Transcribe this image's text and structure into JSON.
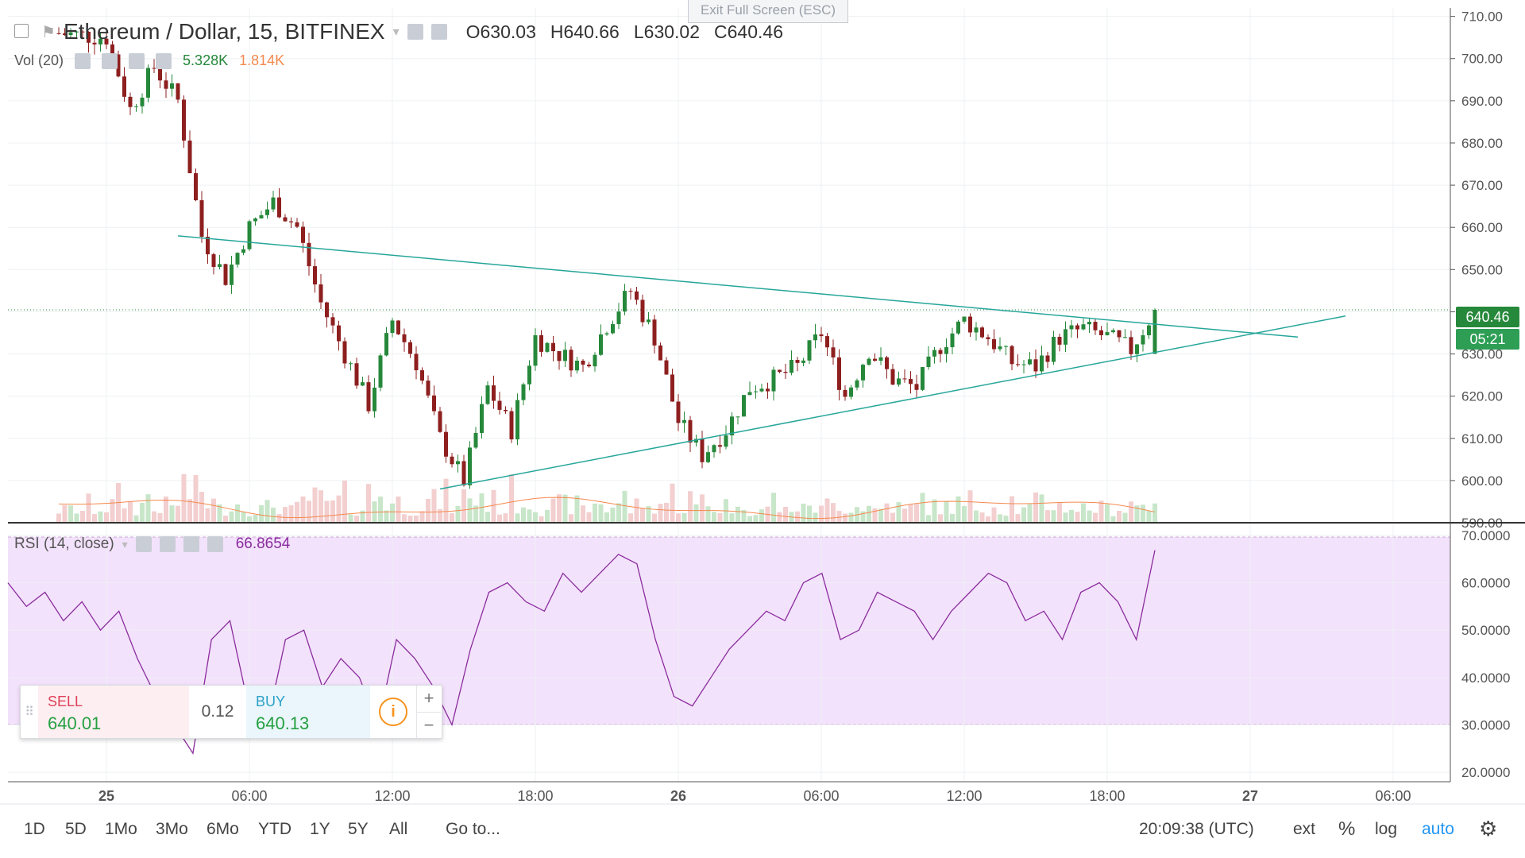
{
  "chart_header": {
    "symbol": "Ethereum / Dollar, 15, BITFINEX",
    "open_label": "O",
    "open": "630.03",
    "high_label": "H",
    "high": "640.66",
    "low_label": "L",
    "low": "630.02",
    "close_label": "C",
    "close": "640.46"
  },
  "fullscreen_hint": "Exit Full Screen (ESC)",
  "volume_indicator": {
    "label": "Vol (20)",
    "value1": "5.328K",
    "value2": "1.814K"
  },
  "rsi_indicator": {
    "label": "RSI (14, close)",
    "value": "66.8654"
  },
  "price_axis": [
    "710.00",
    "700.00",
    "690.00",
    "680.00",
    "670.00",
    "660.00",
    "650.00",
    "640.00",
    "630.00",
    "620.00",
    "610.00",
    "600.00",
    "590.00"
  ],
  "rsi_axis": [
    "70.0000",
    "60.0000",
    "50.0000",
    "40.0000",
    "30.0000",
    "20.0000"
  ],
  "time_axis": [
    "25",
    "06:00",
    "12:00",
    "18:00",
    "26",
    "06:00",
    "12:00",
    "18:00",
    "27",
    "06:00"
  ],
  "last_price_tag": "640.46",
  "countdown_tag": "05:21",
  "trade_panel": {
    "sell_label": "SELL",
    "sell_price": "640.01",
    "spread": "0.12",
    "buy_label": "BUY",
    "buy_price": "640.13"
  },
  "timeframes": [
    "1D",
    "5D",
    "1Mo",
    "3Mo",
    "6Mo",
    "YTD",
    "1Y",
    "5Y",
    "All"
  ],
  "goto_label": "Go to...",
  "clock": "20:09:38 (UTC)",
  "right_controls": {
    "ext": "ext",
    "percent": "%",
    "log": "log",
    "auto": "auto"
  },
  "colors": {
    "up": "#26883a",
    "down": "#8e1f1f",
    "trendline": "#26a69a",
    "rsi_line": "#8a2c9e",
    "rsi_band": "#f3e2fb",
    "accent_blue": "#2196f3"
  },
  "chart_data": [
    {
      "type": "candlestick",
      "title": "Ethereum / Dollar, 15, BITFINEX",
      "ylim": [
        590,
        712
      ],
      "x_ticks": [
        "25",
        "06:00",
        "12:00",
        "18:00",
        "26",
        "06:00",
        "12:00",
        "18:00",
        "27",
        "06:00"
      ],
      "approx_path": [
        {
          "t": "24 22:00",
          "c": 706
        },
        {
          "t": "25 00:00",
          "c": 705
        },
        {
          "t": "25 01:00",
          "c": 688
        },
        {
          "t": "25 02:00",
          "c": 698
        },
        {
          "t": "25 03:00",
          "c": 690
        },
        {
          "t": "25 04:00",
          "c": 658
        },
        {
          "t": "25 05:00",
          "c": 648
        },
        {
          "t": "25 06:00",
          "c": 660
        },
        {
          "t": "25 07:00",
          "c": 666
        },
        {
          "t": "25 08:00",
          "c": 660
        },
        {
          "t": "25 09:00",
          "c": 642
        },
        {
          "t": "25 10:00",
          "c": 630
        },
        {
          "t": "25 11:00",
          "c": 618
        },
        {
          "t": "25 12:00",
          "c": 638
        },
        {
          "t": "25 13:00",
          "c": 628
        },
        {
          "t": "25 14:00",
          "c": 610
        },
        {
          "t": "25 15:00",
          "c": 600
        },
        {
          "t": "25 16:00",
          "c": 622
        },
        {
          "t": "25 17:00",
          "c": 612
        },
        {
          "t": "25 18:00",
          "c": 634
        },
        {
          "t": "25 19:00",
          "c": 630
        },
        {
          "t": "25 20:00",
          "c": 627
        },
        {
          "t": "25 21:00",
          "c": 637
        },
        {
          "t": "25 22:00",
          "c": 645
        },
        {
          "t": "25 23:00",
          "c": 634
        },
        {
          "t": "26 00:00",
          "c": 614
        },
        {
          "t": "26 01:00",
          "c": 606
        },
        {
          "t": "26 02:00",
          "c": 612
        },
        {
          "t": "26 03:00",
          "c": 622
        },
        {
          "t": "26 04:00",
          "c": 624
        },
        {
          "t": "26 05:00",
          "c": 627
        },
        {
          "t": "26 06:00",
          "c": 635
        },
        {
          "t": "26 07:00",
          "c": 620
        },
        {
          "t": "26 08:00",
          "c": 631
        },
        {
          "t": "26 09:00",
          "c": 624
        },
        {
          "t": "26 10:00",
          "c": 622
        },
        {
          "t": "26 11:00",
          "c": 632
        },
        {
          "t": "26 12:00",
          "c": 638
        },
        {
          "t": "26 13:00",
          "c": 634
        },
        {
          "t": "26 14:00",
          "c": 628
        },
        {
          "t": "26 15:00",
          "c": 627
        },
        {
          "t": "26 16:00",
          "c": 634
        },
        {
          "t": "26 17:00",
          "c": 636
        },
        {
          "t": "26 18:00",
          "c": 634
        },
        {
          "t": "26 19:00",
          "c": 631
        },
        {
          "t": "26 20:00",
          "c": 640.46
        }
      ],
      "trendlines": [
        {
          "from": {
            "t": "25 03:00",
            "p": 658
          },
          "to": {
            "t": "27 02:00",
            "p": 634
          }
        },
        {
          "from": {
            "t": "25 14:00",
            "p": 598
          },
          "to": {
            "t": "27 04:00",
            "p": 639
          }
        }
      ]
    },
    {
      "type": "line",
      "title": "RSI (14, close)",
      "ylim": [
        18,
        72
      ],
      "band": [
        30,
        70
      ],
      "approx_values": [
        60,
        55,
        58,
        52,
        56,
        50,
        54,
        44,
        36,
        30,
        24,
        48,
        52,
        34,
        30,
        48,
        50,
        38,
        44,
        40,
        30,
        48,
        44,
        38,
        30,
        46,
        58,
        60,
        56,
        54,
        62,
        58,
        62,
        66,
        64,
        48,
        36,
        34,
        40,
        46,
        50,
        54,
        52,
        60,
        62,
        48,
        50,
        58,
        56,
        54,
        48,
        54,
        58,
        62,
        60,
        52,
        54,
        48,
        58,
        60,
        56,
        48,
        66.8654
      ]
    }
  ]
}
